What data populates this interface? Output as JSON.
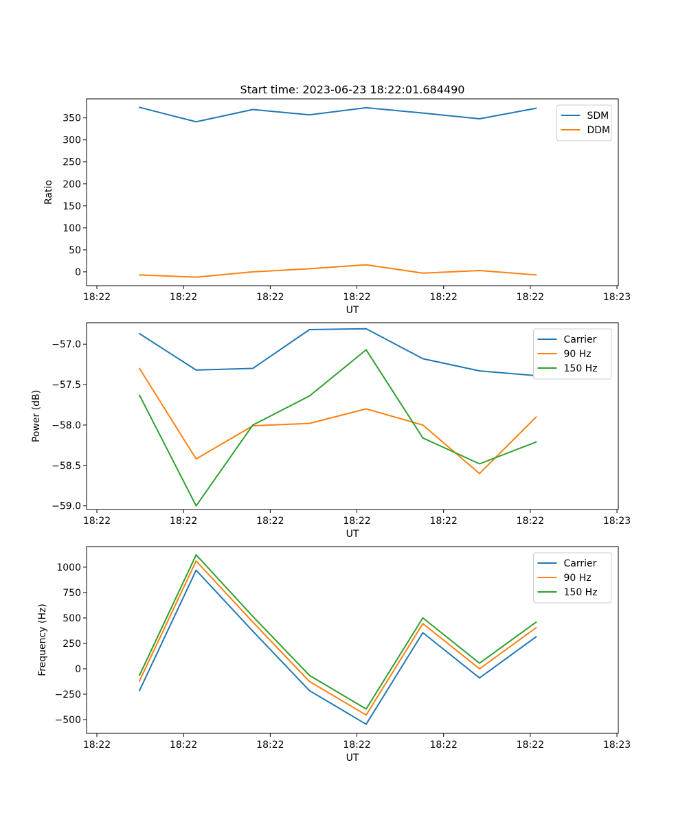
{
  "chart_data": [
    {
      "type": "line",
      "title": "Start time: 2023-06-23 18:22:01.684490",
      "xlabel": "UT",
      "ylabel": "Ratio",
      "x_tick_labels": [
        "18:22",
        "18:22",
        "18:22",
        "18:22",
        "18:22",
        "18:22",
        "18:23"
      ],
      "y_ticks": [
        0,
        50,
        100,
        150,
        200,
        250,
        300,
        350
      ],
      "y_tick_labels": [
        "0",
        "50",
        "100",
        "150",
        "200",
        "250",
        "300",
        "350"
      ],
      "ylim": [
        -31.4,
        393.2
      ],
      "legend": "top-right",
      "series": [
        {
          "name": "SDM",
          "color": "#1f77b4",
          "values": [
            374,
            341,
            369,
            357,
            373,
            361,
            348,
            372
          ]
        },
        {
          "name": "DDM",
          "color": "#ff7f0e",
          "values": [
            -7,
            -12,
            0,
            7,
            16,
            -3,
            3,
            -7
          ]
        }
      ]
    },
    {
      "type": "line",
      "title": "",
      "xlabel": "UT",
      "ylabel": "Power (dB)",
      "x_tick_labels": [
        "18:22",
        "18:22",
        "18:22",
        "18:22",
        "18:22",
        "18:22",
        "18:23"
      ],
      "y_ticks": [
        -59.0,
        -58.5,
        -58.0,
        -57.5,
        -57.0
      ],
      "y_tick_labels": [
        "−59.0",
        "−58.5",
        "−58.0",
        "−57.5",
        "−57.0"
      ],
      "ylim": [
        -59.045,
        -56.735
      ],
      "legend": "top-right",
      "series": [
        {
          "name": "Carrier",
          "color": "#1f77b4",
          "values": [
            -56.87,
            -57.32,
            -57.3,
            -56.82,
            -56.81,
            -57.18,
            -57.33,
            -57.39
          ]
        },
        {
          "name": "90 Hz",
          "color": "#ff7f0e",
          "values": [
            -57.3,
            -58.42,
            -58.01,
            -57.98,
            -57.8,
            -58.0,
            -58.6,
            -57.9
          ]
        },
        {
          "name": "150 Hz",
          "color": "#2ca02c",
          "values": [
            -57.63,
            -59.0,
            -58.0,
            -57.64,
            -57.07,
            -58.16,
            -58.48,
            -58.21
          ]
        }
      ]
    },
    {
      "type": "line",
      "title": "",
      "xlabel": "UT",
      "ylabel": "Frequency (Hz)",
      "x_tick_labels": [
        "18:22",
        "18:22",
        "18:22",
        "18:22",
        "18:22",
        "18:22",
        "18:23"
      ],
      "y_ticks": [
        -500,
        -250,
        0,
        250,
        500,
        750,
        1000
      ],
      "y_tick_labels": [
        "−500",
        "−250",
        "0",
        "250",
        "500",
        "750",
        "1000"
      ],
      "ylim": [
        -635,
        1202
      ],
      "legend": "top-right",
      "series": [
        {
          "name": "Carrier",
          "color": "#1f77b4",
          "values": [
            -215,
            970,
            370,
            -215,
            -545,
            355,
            -90,
            315
          ]
        },
        {
          "name": "90 Hz",
          "color": "#ff7f0e",
          "values": [
            -120,
            1060,
            460,
            -125,
            -455,
            445,
            0,
            405
          ]
        },
        {
          "name": "150 Hz",
          "color": "#2ca02c",
          "values": [
            -65,
            1120,
            515,
            -65,
            -395,
            500,
            55,
            460
          ]
        }
      ]
    }
  ]
}
